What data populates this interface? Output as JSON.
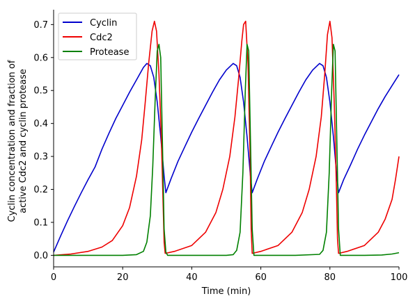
{
  "chart_data": {
    "type": "line",
    "xlabel": "Time (min)",
    "ylabel_lines": [
      "Cyclin concentration and fraction of",
      "active Cdc2 and cyclin protease"
    ],
    "xlim": [
      0,
      100
    ],
    "ylim": [
      -0.035,
      0.745
    ],
    "xticks": [
      0,
      20,
      40,
      60,
      80,
      100
    ],
    "yticks": [
      0.0,
      0.1,
      0.2,
      0.3,
      0.4,
      0.5,
      0.6,
      0.7
    ],
    "ytick_labels": [
      "0.0",
      "0.1",
      "0.2",
      "0.3",
      "0.4",
      "0.5",
      "0.6",
      "0.7"
    ],
    "grid": false,
    "legend_position": "top-left",
    "series": [
      {
        "name": "Cyclin",
        "color": "#0000cc",
        "x": [
          0,
          2,
          4,
          6,
          8,
          10,
          12,
          14,
          16,
          18,
          20,
          22,
          24,
          26,
          27,
          28,
          29,
          30,
          31,
          32,
          32.5,
          34,
          36,
          38,
          40,
          42,
          44,
          46,
          48,
          50,
          52,
          53,
          54,
          55,
          56,
          57,
          57.5,
          59,
          61,
          63,
          65,
          67,
          69,
          71,
          73,
          75,
          77,
          78,
          79,
          80,
          81,
          82,
          82.5,
          84,
          86,
          88,
          90,
          92,
          94,
          96,
          98,
          100
        ],
        "y": [
          0.01,
          0.058,
          0.104,
          0.148,
          0.19,
          0.23,
          0.268,
          0.322,
          0.37,
          0.415,
          0.455,
          0.495,
          0.532,
          0.57,
          0.582,
          0.575,
          0.54,
          0.465,
          0.36,
          0.24,
          0.19,
          0.232,
          0.285,
          0.33,
          0.374,
          0.415,
          0.455,
          0.495,
          0.532,
          0.562,
          0.582,
          0.575,
          0.54,
          0.465,
          0.36,
          0.24,
          0.19,
          0.232,
          0.285,
          0.33,
          0.374,
          0.415,
          0.455,
          0.495,
          0.532,
          0.562,
          0.582,
          0.575,
          0.54,
          0.465,
          0.36,
          0.24,
          0.19,
          0.23,
          0.275,
          0.322,
          0.365,
          0.405,
          0.445,
          0.482,
          0.515,
          0.548
        ]
      },
      {
        "name": "Cdc2",
        "color": "#ee0000",
        "x": [
          0,
          5,
          10,
          14,
          17,
          20,
          22,
          24,
          25.5,
          26.5,
          27.5,
          28.5,
          29.2,
          29.8,
          30.5,
          31.2,
          31.8,
          32.0,
          32.3,
          35,
          40,
          44,
          47,
          49,
          51,
          52.5,
          53.5,
          54.5,
          55,
          55.6,
          56.3,
          56.9,
          57.2,
          57.5,
          60,
          65,
          69,
          72,
          74,
          76,
          77.5,
          78.5,
          79.3,
          80,
          80.6,
          81.3,
          81.9,
          82.2,
          82.5,
          85,
          90,
          94,
          96,
          98,
          99,
          100
        ],
        "y": [
          0.0,
          0.004,
          0.012,
          0.025,
          0.045,
          0.09,
          0.145,
          0.24,
          0.35,
          0.46,
          0.58,
          0.68,
          0.71,
          0.68,
          0.55,
          0.35,
          0.12,
          0.04,
          0.006,
          0.012,
          0.03,
          0.07,
          0.13,
          0.2,
          0.3,
          0.42,
          0.53,
          0.65,
          0.7,
          0.71,
          0.58,
          0.3,
          0.08,
          0.006,
          0.012,
          0.03,
          0.07,
          0.13,
          0.2,
          0.3,
          0.42,
          0.55,
          0.67,
          0.71,
          0.66,
          0.45,
          0.2,
          0.05,
          0.006,
          0.012,
          0.03,
          0.07,
          0.11,
          0.17,
          0.23,
          0.3
        ]
      },
      {
        "name": "Protease",
        "color": "#008000",
        "x": [
          0,
          10,
          20,
          24,
          26,
          27,
          28,
          28.7,
          29.4,
          30,
          30.5,
          31,
          31.5,
          32,
          32.5,
          33,
          40,
          50,
          52,
          53,
          54,
          54.8,
          55.5,
          56,
          56.5,
          57,
          57.5,
          58,
          60,
          70,
          77,
          78,
          79,
          79.8,
          80.5,
          81,
          81.5,
          82,
          82.5,
          83,
          85,
          90,
          95,
          98,
          100
        ],
        "y": [
          0.0,
          0.0,
          0.0,
          0.002,
          0.012,
          0.04,
          0.12,
          0.27,
          0.47,
          0.62,
          0.64,
          0.6,
          0.35,
          0.08,
          0.01,
          0.0,
          0.0,
          0.0,
          0.002,
          0.015,
          0.07,
          0.25,
          0.5,
          0.64,
          0.62,
          0.35,
          0.08,
          0.0,
          0.0,
          0.0,
          0.003,
          0.015,
          0.07,
          0.25,
          0.5,
          0.64,
          0.62,
          0.35,
          0.08,
          0.0,
          0.0,
          0.0,
          0.001,
          0.004,
          0.008
        ]
      }
    ]
  }
}
